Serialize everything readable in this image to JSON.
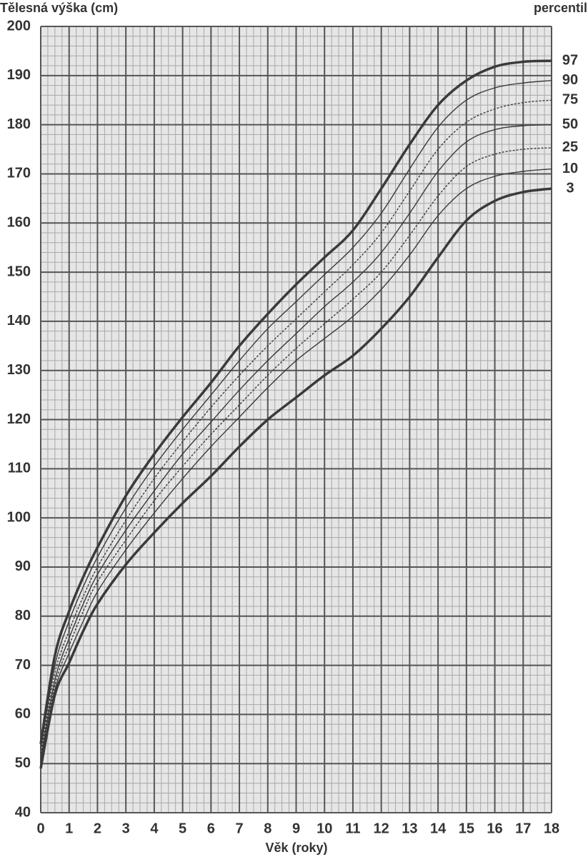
{
  "chart_data": {
    "type": "line",
    "title": "Tělesná výška (cm)",
    "legend_title": "percentil",
    "x_label": "Věk (roky)",
    "x": [
      0,
      0.5,
      1,
      1.5,
      2,
      3,
      4,
      5,
      6,
      7,
      8,
      9,
      10,
      11,
      12,
      13,
      14,
      15,
      16,
      17,
      18
    ],
    "series": [
      {
        "name": "97",
        "color": "#3a3a3a",
        "thick": true,
        "dashed": false,
        "values": [
          54,
          72,
          81,
          88,
          94,
          104.5,
          113,
          120.5,
          127.5,
          135,
          141.5,
          147.5,
          153,
          158.5,
          167,
          176,
          184,
          189,
          191.8,
          192.8,
          193
        ]
      },
      {
        "name": "90",
        "color": "#3a3a3a",
        "thick": false,
        "dashed": false,
        "values": [
          53,
          70,
          79,
          86,
          92,
          102,
          110.5,
          118,
          125,
          132,
          138.5,
          144,
          149.5,
          155,
          162,
          171,
          179.5,
          185,
          187.5,
          188.5,
          189
        ]
      },
      {
        "name": "75",
        "color": "#3a3a3a",
        "thick": false,
        "dashed": true,
        "values": [
          52,
          68.5,
          77,
          84,
          90,
          99.5,
          108,
          115.5,
          122.5,
          129,
          135,
          140.5,
          146,
          151.5,
          158,
          166.5,
          175,
          180.5,
          183.2,
          184.5,
          185
        ]
      },
      {
        "name": "50",
        "color": "#3a3a3a",
        "thick": false,
        "dashed": false,
        "values": [
          51,
          67,
          75.5,
          82.5,
          88.5,
          97.5,
          105.5,
          113,
          119.5,
          126,
          132,
          137.5,
          143,
          148,
          154,
          162,
          170.5,
          176.5,
          179,
          179.8,
          180
        ]
      },
      {
        "name": "25",
        "color": "#3a3a3a",
        "thick": false,
        "dashed": true,
        "values": [
          50.5,
          66,
          74,
          81,
          87,
          95.5,
          103.5,
          110.5,
          117,
          123,
          129,
          134.5,
          139.5,
          144.5,
          150,
          157.5,
          165.5,
          171.5,
          174,
          175,
          175.3
        ]
      },
      {
        "name": "10",
        "color": "#3a3a3a",
        "thick": false,
        "dashed": false,
        "values": [
          50,
          65,
          72.5,
          79,
          85,
          93.5,
          101,
          108,
          114.5,
          120.5,
          126.5,
          132,
          136.5,
          141,
          146.5,
          153.5,
          161.5,
          167,
          169.5,
          170.5,
          171
        ]
      },
      {
        "name": "3",
        "color": "#3a3a3a",
        "thick": true,
        "dashed": false,
        "values": [
          49,
          64,
          70.5,
          77,
          82.5,
          90.5,
          97,
          103,
          108.5,
          114.5,
          120,
          124.5,
          129,
          133,
          138.5,
          145,
          153,
          160.5,
          164.5,
          166.3,
          167
        ]
      }
    ],
    "xlim": [
      0,
      18
    ],
    "xticks": [
      0,
      1,
      2,
      3,
      4,
      5,
      6,
      7,
      8,
      9,
      10,
      11,
      12,
      13,
      14,
      15,
      16,
      17,
      18
    ],
    "ylim": [
      40,
      200
    ],
    "yticks": [
      40,
      50,
      60,
      70,
      80,
      90,
      100,
      110,
      120,
      130,
      140,
      150,
      160,
      170,
      180,
      190,
      200
    ],
    "grid": true
  }
}
